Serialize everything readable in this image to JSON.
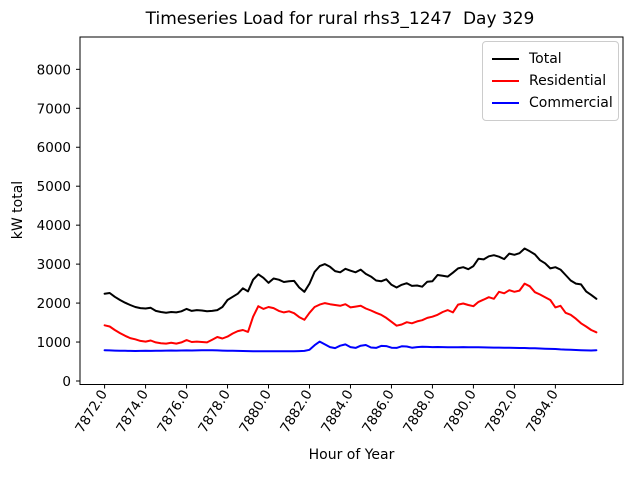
{
  "title": "Timeseries Load for rural rhs3_1247  Day 329",
  "chart_data": {
    "type": "line",
    "title": "Timeseries Load for rural rhs3_1247  Day 329",
    "xlabel": "Hour of Year",
    "ylabel": "kW total",
    "grid": false,
    "legend_position": "upper right",
    "xlim": [
      7870.8,
      7897.3
    ],
    "ylim": [
      -90,
      8830
    ],
    "xticks": [
      7872,
      7874,
      7876,
      7878,
      7880,
      7882,
      7884,
      7886,
      7888,
      7890,
      7892,
      7894
    ],
    "xtick_labels": [
      "7872.0",
      "7874.0",
      "7876.0",
      "7878.0",
      "7880.0",
      "7882.0",
      "7884.0",
      "7886.0",
      "7888.0",
      "7890.0",
      "7892.0",
      "7894.0"
    ],
    "yticks": [
      0,
      1000,
      2000,
      3000,
      4000,
      5000,
      6000,
      7000,
      8000
    ],
    "ytick_labels": [
      "0",
      "1000",
      "2000",
      "3000",
      "4000",
      "5000",
      "6000",
      "7000",
      "8000"
    ],
    "x_start": 7872.0,
    "x_step": 0.25,
    "series": [
      {
        "name": "Total",
        "color": "#000000",
        "values": [
          2240,
          2260,
          2160,
          2080,
          2010,
          1950,
          1900,
          1870,
          1860,
          1880,
          1800,
          1770,
          1750,
          1770,
          1760,
          1790,
          1850,
          1800,
          1820,
          1810,
          1790,
          1800,
          1820,
          1900,
          2080,
          2160,
          2240,
          2380,
          2300,
          2600,
          2740,
          2650,
          2520,
          2630,
          2600,
          2540,
          2560,
          2570,
          2400,
          2290,
          2500,
          2800,
          2950,
          3000,
          2930,
          2820,
          2790,
          2880,
          2830,
          2790,
          2860,
          2750,
          2680,
          2580,
          2560,
          2610,
          2470,
          2400,
          2470,
          2510,
          2440,
          2450,
          2420,
          2550,
          2560,
          2720,
          2700,
          2680,
          2780,
          2890,
          2920,
          2870,
          2950,
          3140,
          3120,
          3200,
          3230,
          3190,
          3130,
          3270,
          3240,
          3280,
          3400,
          3330,
          3250,
          3100,
          3020,
          2890,
          2920,
          2860,
          2720,
          2580,
          2500,
          2480,
          2300,
          2210,
          2110
        ]
      },
      {
        "name": "Residential",
        "color": "#ff0000",
        "values": [
          1430,
          1400,
          1310,
          1230,
          1160,
          1100,
          1070,
          1030,
          1010,
          1040,
          990,
          970,
          960,
          980,
          960,
          990,
          1050,
          1000,
          1010,
          1000,
          990,
          1060,
          1130,
          1090,
          1140,
          1220,
          1280,
          1310,
          1260,
          1650,
          1920,
          1850,
          1900,
          1870,
          1800,
          1760,
          1790,
          1740,
          1640,
          1570,
          1750,
          1900,
          1960,
          2000,
          1970,
          1950,
          1930,
          1970,
          1890,
          1910,
          1930,
          1860,
          1810,
          1750,
          1700,
          1620,
          1520,
          1420,
          1450,
          1510,
          1480,
          1530,
          1560,
          1620,
          1650,
          1700,
          1770,
          1820,
          1760,
          1960,
          1990,
          1950,
          1920,
          2030,
          2090,
          2150,
          2110,
          2290,
          2250,
          2330,
          2290,
          2320,
          2500,
          2430,
          2280,
          2220,
          2150,
          2080,
          1890,
          1930,
          1750,
          1700,
          1600,
          1480,
          1400,
          1310,
          1250
        ]
      },
      {
        "name": "Commercial",
        "color": "#0000ff",
        "values": [
          790,
          785,
          780,
          778,
          775,
          772,
          770,
          772,
          775,
          772,
          775,
          778,
          780,
          782,
          780,
          782,
          785,
          782,
          785,
          788,
          790,
          788,
          785,
          780,
          778,
          775,
          772,
          770,
          768,
          766,
          765,
          764,
          763,
          762,
          762,
          763,
          764,
          766,
          768,
          772,
          800,
          920,
          1010,
          940,
          870,
          845,
          905,
          940,
          870,
          850,
          905,
          925,
          860,
          850,
          900,
          895,
          855,
          850,
          890,
          885,
          855,
          870,
          880,
          875,
          870,
          872,
          870,
          868,
          865,
          868,
          870,
          867,
          865,
          865,
          862,
          860,
          858,
          856,
          854,
          852,
          850,
          848,
          846,
          843,
          840,
          835,
          830,
          825,
          820,
          812,
          805,
          800,
          795,
          790,
          785,
          782,
          790
        ]
      }
    ]
  }
}
